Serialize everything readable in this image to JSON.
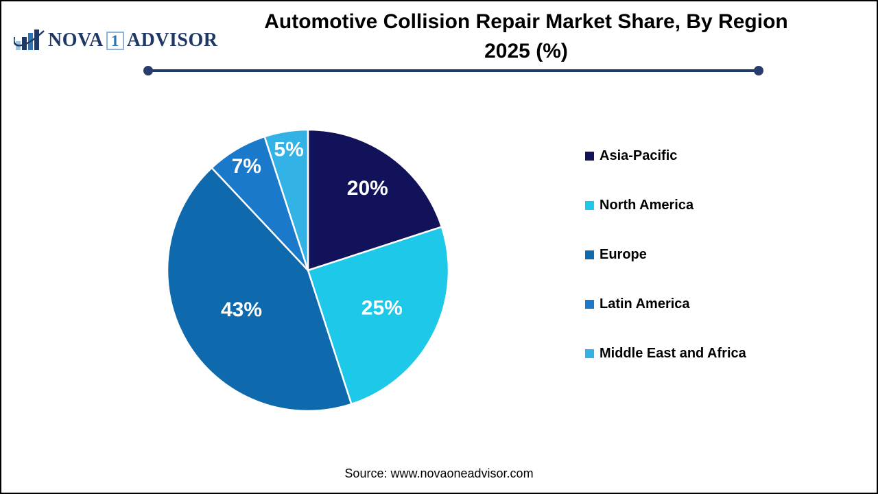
{
  "logo": {
    "name_part1": "NOVA",
    "name_number": "1",
    "name_part2": "ADVISOR",
    "text_color": "#1F3864",
    "accent_color": "#2E74B5",
    "light_color": "#9DC3E6"
  },
  "header": {
    "title_line1": "Automotive Collision Repair Market Share, By Region",
    "title_line2": "2025 (%)",
    "divider_color": "#1F3864"
  },
  "footer": {
    "source": "Source: www.novaoneadvisor.com"
  },
  "chart_data": {
    "type": "pie",
    "title": "Automotive Collision Repair Market Share, By Region 2025 (%)",
    "unit": "%",
    "start": "12 o'clock",
    "direction": "clockwise",
    "categories": [
      "Asia-Pacific",
      "North America",
      "Europe",
      "Latin America",
      "Middle East and Africa"
    ],
    "values": [
      20,
      25,
      43,
      7,
      5
    ],
    "value_labels": [
      "20%",
      "25%",
      "43%",
      "7%",
      "5%"
    ],
    "colors": [
      "#12125A",
      "#1EC8E8",
      "#0F6AAD",
      "#1A79CB",
      "#32B2E5"
    ],
    "slice_border_color": "#FFFFFF",
    "label_color": "#FFFFFF",
    "label_radius_frac": [
      0.72,
      0.59,
      0.55,
      0.86,
      0.87
    ],
    "legend_position": "right"
  }
}
